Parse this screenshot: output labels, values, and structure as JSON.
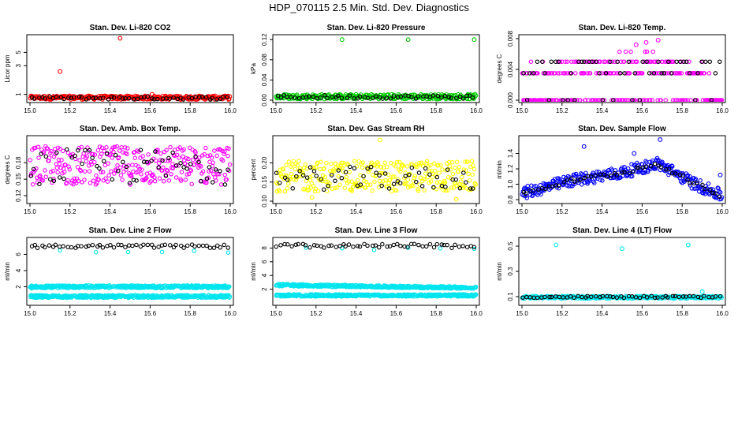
{
  "title": "HDP_070115  2.5 Min. Std. Dev. Diagnostics",
  "chart_data": [
    {
      "type": "scatter",
      "title": "Stan. Dev. Li-820 CO2",
      "ylabel": "Licor ppm",
      "ylog": true,
      "xlim": [
        15.0,
        16.0
      ],
      "ylim": [
        0.8,
        9.0
      ],
      "xticks": [
        "15.0",
        "15.2",
        "15.4",
        "15.6",
        "15.8",
        "16.0"
      ],
      "yticks": [
        1,
        3,
        5
      ],
      "ytick_labels": [
        "1",
        "3",
        "5"
      ],
      "series": [
        {
          "name": "red",
          "color": "#ff0000",
          "band": [
            0.82,
            0.95
          ],
          "outliers": [
            [
              15.45,
              8.6
            ],
            [
              15.15,
              2.4
            ],
            [
              15.61,
              1.0
            ]
          ]
        },
        {
          "name": "black",
          "color": "#000000",
          "band": [
            0.82,
            0.92
          ]
        }
      ]
    },
    {
      "type": "scatter",
      "title": "Stan. Dev. Li-820 Pressure",
      "ylabel": "kPa",
      "xlim": [
        15.0,
        16.0
      ],
      "ylim": [
        0.0,
        0.125
      ],
      "xticks": [
        "15.0",
        "15.2",
        "15.4",
        "15.6",
        "15.8",
        "16.0"
      ],
      "yticks": [
        0.0,
        0.04,
        0.08,
        0.12
      ],
      "ytick_labels": [
        "0.00",
        "0.04",
        "0.08",
        "0.12"
      ],
      "series": [
        {
          "name": "green",
          "color": "#00cc00",
          "band": [
            0.002,
            0.012
          ],
          "outliers": [
            [
              15.33,
              0.12
            ],
            [
              15.66,
              0.12
            ],
            [
              15.99,
              0.12
            ]
          ]
        },
        {
          "name": "black",
          "color": "#000000",
          "band": [
            0.003,
            0.01
          ]
        }
      ]
    },
    {
      "type": "scatter",
      "title": "Stan. Dev. Li-820 Temp.",
      "ylabel": "degrees C",
      "xlim": [
        15.0,
        16.0
      ],
      "ylim": [
        0.0,
        0.0082
      ],
      "xticks": [
        "15.0",
        "15.2",
        "15.4",
        "15.6",
        "15.8",
        "16.0"
      ],
      "yticks": [
        0.0,
        0.004,
        0.008
      ],
      "ytick_labels": [
        "0.000",
        "0.004",
        "0.008"
      ],
      "series": [
        {
          "name": "magenta",
          "color": "#ff00ff",
          "levels": [
            0.0,
            0.0035,
            0.005,
            0.0063
          ],
          "outliers": [
            [
              15.62,
              0.0075
            ],
            [
              15.57,
              0.0072
            ],
            [
              15.68,
              0.0078
            ]
          ]
        },
        {
          "name": "black",
          "color": "#000000",
          "levels": [
            0.0,
            0.0035,
            0.005
          ]
        }
      ]
    },
    {
      "type": "scatter",
      "title": "Stan. Dev. Amb. Box Temp.",
      "ylabel": "degrees C",
      "xlim": [
        15.0,
        16.0
      ],
      "ylim": [
        0.11,
        0.225
      ],
      "xticks": [
        "15.0",
        "15.2",
        "15.4",
        "15.6",
        "15.8",
        "16.0"
      ],
      "yticks": [
        0.12,
        0.15,
        0.18
      ],
      "ytick_labels": [
        "0.12",
        "0.15",
        "0.18"
      ],
      "series": [
        {
          "name": "magenta",
          "color": "#ff00ff",
          "band": [
            0.14,
            0.21
          ]
        },
        {
          "name": "black",
          "color": "#000000",
          "band": [
            0.14,
            0.205
          ]
        }
      ]
    },
    {
      "type": "scatter",
      "title": "Stan. Dev. Gas Stream RH",
      "ylabel": "percent",
      "xlim": [
        15.0,
        16.0
      ],
      "ylim": [
        0.1,
        0.265
      ],
      "xticks": [
        "15.0",
        "15.2",
        "15.4",
        "15.6",
        "15.8",
        "16.0"
      ],
      "yticks": [
        0.1,
        0.15,
        0.2
      ],
      "ytick_labels": [
        "0.10",
        "0.15",
        "0.20"
      ],
      "series": [
        {
          "name": "yellow",
          "color": "#ffff00",
          "band": [
            0.125,
            0.205
          ],
          "outliers": [
            [
              15.52,
              0.26
            ],
            [
              15.18,
              0.11
            ],
            [
              15.9,
              0.105
            ]
          ]
        },
        {
          "name": "black",
          "color": "#000000",
          "band": [
            0.13,
            0.19
          ]
        }
      ]
    },
    {
      "type": "scatter",
      "title": "Stan. Dev. Sample Flow",
      "ylabel": "ml/min",
      "xlim": [
        15.0,
        16.0
      ],
      "ylim": [
        0.78,
        1.6
      ],
      "xticks": [
        "15.0",
        "15.2",
        "15.4",
        "15.6",
        "15.8",
        "16.0"
      ],
      "yticks": [
        0.8,
        1.0,
        1.2,
        1.4
      ],
      "ytick_labels": [
        "0.8",
        "1.0",
        "1.2",
        "1.4"
      ],
      "series": [
        {
          "name": "blue",
          "color": "#0000ff",
          "curve": [
            [
              15.0,
              0.88
            ],
            [
              15.25,
              1.05
            ],
            [
              15.5,
              1.15
            ],
            [
              15.68,
              1.27
            ],
            [
              15.85,
              1.02
            ],
            [
              16.0,
              0.85
            ]
          ],
          "outliers": [
            [
              15.31,
              1.49
            ],
            [
              15.69,
              1.58
            ],
            [
              15.99,
              1.12
            ],
            [
              15.56,
              1.4
            ]
          ]
        },
        {
          "name": "black",
          "color": "#000000",
          "curve": [
            [
              15.0,
              0.88
            ],
            [
              15.25,
              1.05
            ],
            [
              15.5,
              1.15
            ],
            [
              15.68,
              1.27
            ],
            [
              15.85,
              1.02
            ],
            [
              16.0,
              0.85
            ]
          ]
        }
      ]
    },
    {
      "type": "scatter",
      "title": "Stan. Dev. Line 2 Flow",
      "ylabel": "ml/min",
      "xlim": [
        15.0,
        16.0
      ],
      "ylim": [
        0.0,
        7.8
      ],
      "xticks": [
        "15.0",
        "15.2",
        "15.4",
        "15.6",
        "15.8",
        "16.0"
      ],
      "yticks": [
        2,
        4,
        6
      ],
      "ytick_labels": [
        "2",
        "4",
        "6"
      ],
      "series": [
        {
          "name": "cyan",
          "color": "#00e5ee",
          "lines": [
            2.0,
            0.8
          ],
          "spikes": [
            6.4
          ]
        },
        {
          "name": "black",
          "color": "#000000",
          "band": [
            6.8,
            7.2
          ]
        }
      ]
    },
    {
      "type": "scatter",
      "title": "Stan. Dev. Line 3 Flow",
      "ylabel": "ml/min",
      "xlim": [
        15.0,
        16.0
      ],
      "ylim": [
        0.0,
        9.2
      ],
      "xticks": [
        "15.0",
        "15.2",
        "15.4",
        "15.6",
        "15.8",
        "16.0"
      ],
      "yticks": [
        2,
        4,
        6,
        8
      ],
      "ytick_labels": [
        "2",
        "4",
        "6",
        "8"
      ],
      "series": [
        {
          "name": "cyan",
          "color": "#00e5ee",
          "lines": [
            2.6,
            1.1
          ],
          "spikes": [
            7.9
          ]
        },
        {
          "name": "black",
          "color": "#000000",
          "band": [
            8.0,
            8.6
          ]
        }
      ]
    },
    {
      "type": "scatter",
      "title": "Stan. Dev. Line 4 (LT) Flow",
      "ylabel": "ml/min",
      "xlim": [
        15.0,
        16.0
      ],
      "ylim": [
        0.05,
        0.55
      ],
      "xticks": [
        "15.0",
        "15.2",
        "15.4",
        "15.6",
        "15.8",
        "16.0"
      ],
      "yticks": [
        0.1,
        0.3,
        0.5
      ],
      "ytick_labels": [
        "0.1",
        "0.3",
        "0.5"
      ],
      "series": [
        {
          "name": "cyan",
          "color": "#00e5ee",
          "band": [
            0.085,
            0.105
          ],
          "outliers": [
            [
              15.17,
              0.51
            ],
            [
              15.5,
              0.48
            ],
            [
              15.83,
              0.51
            ],
            [
              15.9,
              0.14
            ]
          ]
        },
        {
          "name": "black",
          "color": "#000000",
          "band": [
            0.09,
            0.105
          ]
        }
      ]
    }
  ]
}
